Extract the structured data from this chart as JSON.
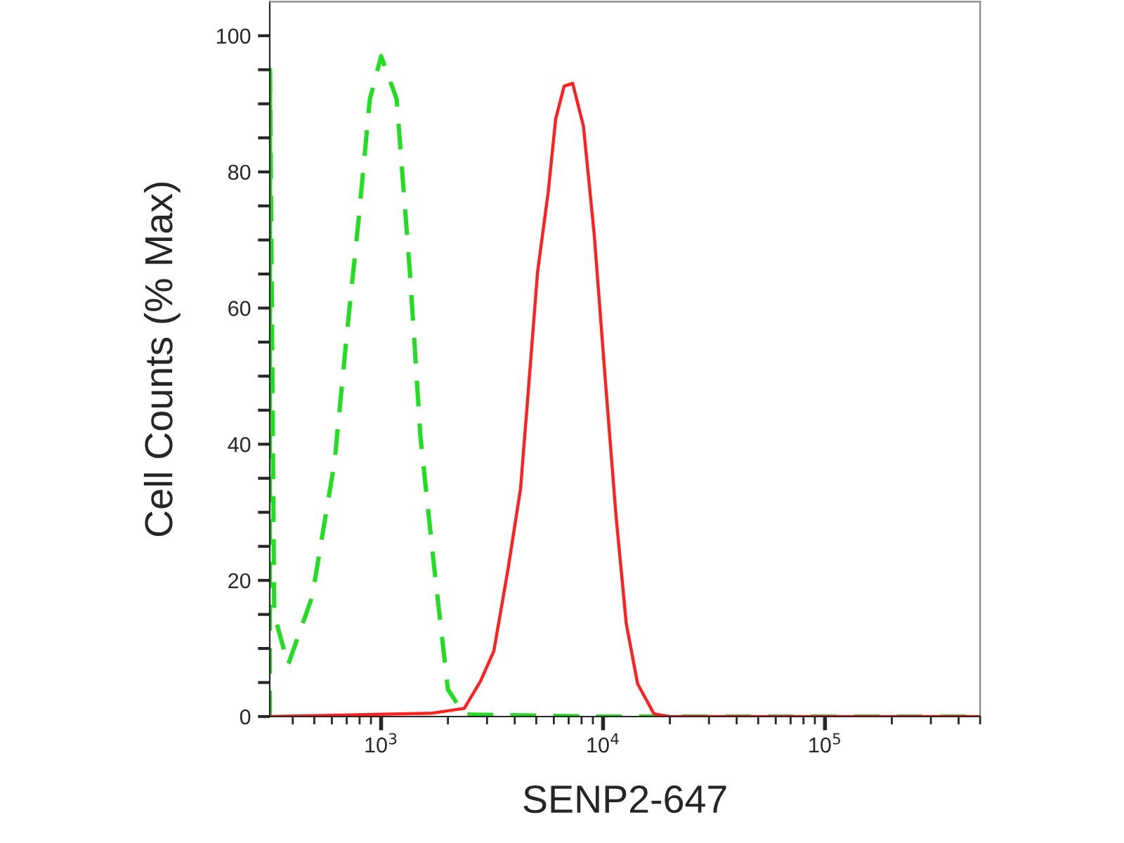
{
  "chart_data": {
    "type": "line",
    "xlabel": "SENP2-647",
    "ylabel": "Cell Counts (% Max)",
    "log": "x",
    "xlim": [
      315,
      500000
    ],
    "xticks": [
      {
        "value": 1000,
        "label": "10$^{3}$"
      },
      {
        "value": 10000,
        "label": "10$^{4}$"
      },
      {
        "value": 100000,
        "label": "10$^{5}$"
      }
    ],
    "ylim": [
      0,
      105
    ],
    "yticks": [
      0,
      {
        "value": 5,
        "label": null
      },
      {
        "value": 10,
        "label": null
      },
      {
        "value": 15,
        "label": null
      },
      20,
      {
        "value": 25,
        "label": null
      },
      {
        "value": 30,
        "label": null
      },
      {
        "value": 35,
        "label": null
      },
      40,
      {
        "value": 45,
        "label": null
      },
      {
        "value": 50,
        "label": null
      },
      {
        "value": 55,
        "label": null
      },
      60,
      {
        "value": 65,
        "label": null
      },
      {
        "value": 70,
        "label": null
      },
      {
        "value": 75,
        "label": null
      },
      80,
      {
        "value": 85,
        "label": null
      },
      {
        "value": 90,
        "label": null
      },
      {
        "value": 95,
        "label": null
      },
      100
    ],
    "grid": false,
    "legend": false,
    "marker": "none",
    "series": [
      {
        "color": "#22dd22",
        "line_style": "dashed",
        "x": [
          315,
          316,
          330,
          381,
          489,
          617,
          705,
          792,
          890,
          1000,
          1175,
          1350,
          1505,
          1740,
          2000,
          2370,
          10000,
          100000,
          500000
        ],
        "values": [
          0,
          95,
          15,
          7.6,
          17.6,
          37.4,
          57,
          73,
          90.7,
          97,
          90.7,
          65,
          41,
          21.5,
          4,
          0.3,
          0,
          0,
          0
        ]
      },
      {
        "color": "#ff2020",
        "line_style": "solid",
        "x": [
          315,
          1700,
          2370,
          2805,
          3220,
          3725,
          4250,
          4645,
          5070,
          5660,
          6120,
          6680,
          7300,
          8160,
          9120,
          10240,
          11440,
          12730,
          14320,
          16960,
          20000,
          500000
        ],
        "values": [
          0,
          0.5,
          1.2,
          5.2,
          9.6,
          21.5,
          33.5,
          49.4,
          65.3,
          77,
          87.8,
          92.6,
          93,
          86.7,
          70.9,
          49.4,
          29.5,
          13.6,
          4.8,
          0.4,
          0,
          0
        ]
      }
    ]
  }
}
